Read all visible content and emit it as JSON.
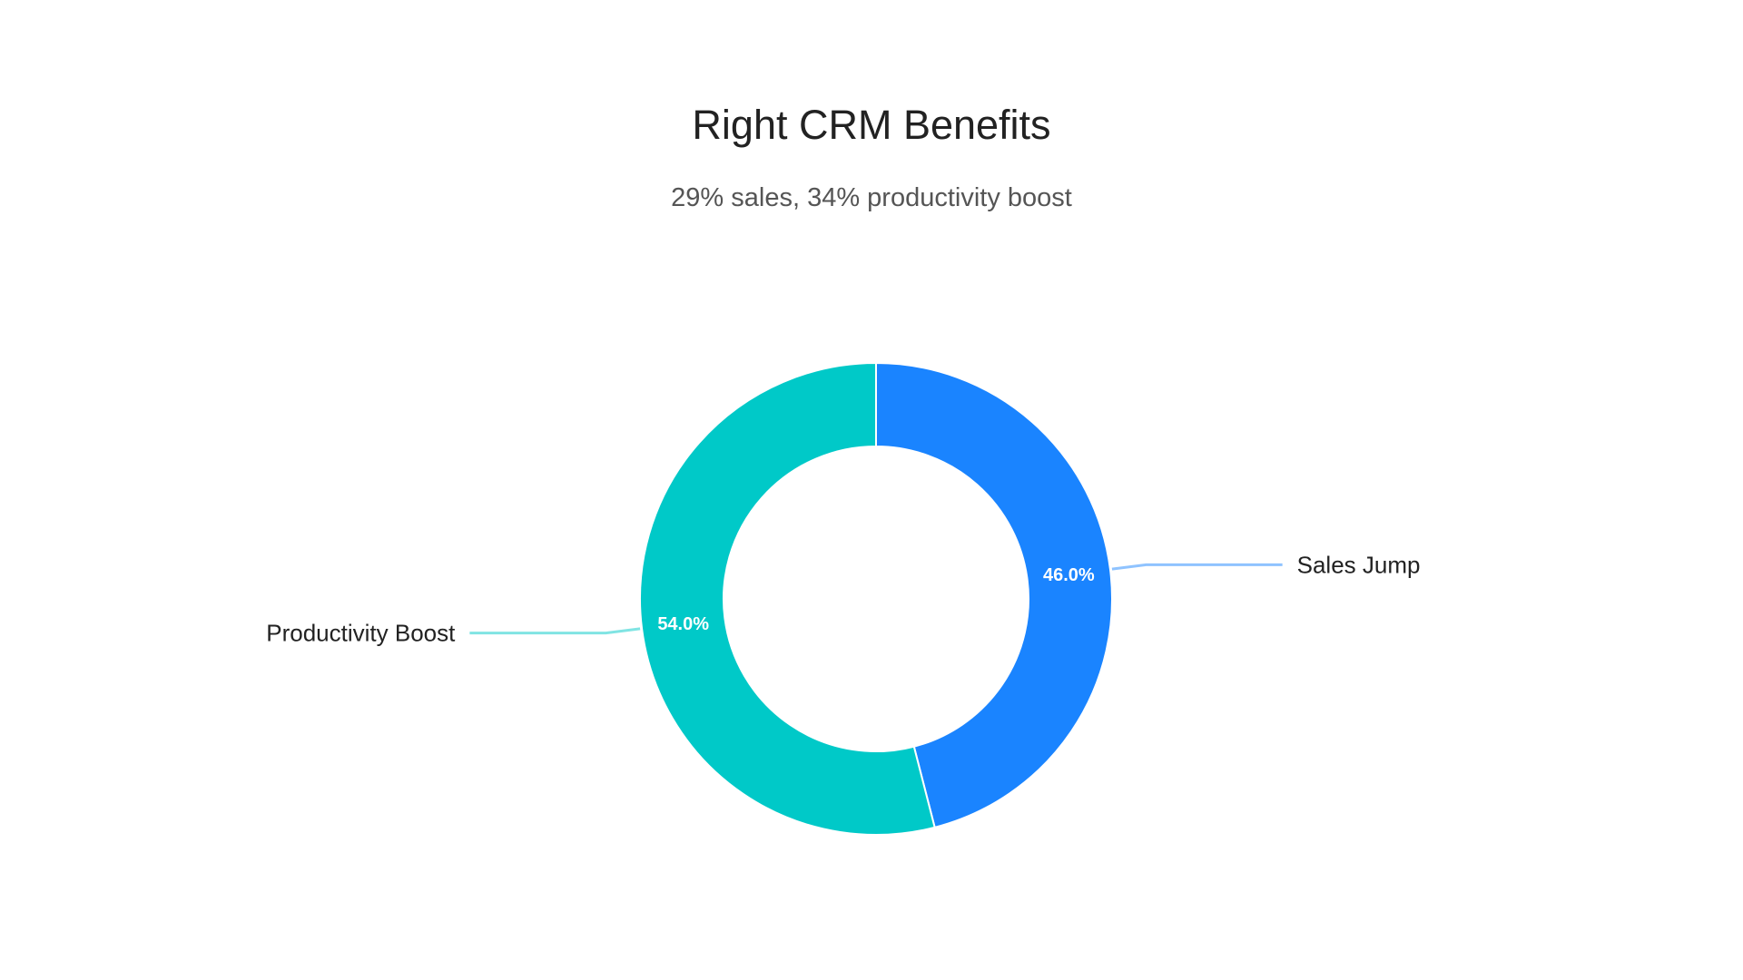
{
  "chart_data": {
    "type": "pie",
    "variant": "donut",
    "title": "Right CRM Benefits",
    "subtitle": "29% sales, 34% productivity boost",
    "slices": [
      {
        "label": "Sales Jump",
        "value": 46.0,
        "value_label": "46.0%",
        "color": "#1a84ff",
        "leader_color": "#8fc3ff"
      },
      {
        "label": "Productivity Boost",
        "value": 54.0,
        "value_label": "54.0%",
        "color": "#00c9c8",
        "leader_color": "#80e4e3"
      }
    ],
    "legend": "none"
  }
}
